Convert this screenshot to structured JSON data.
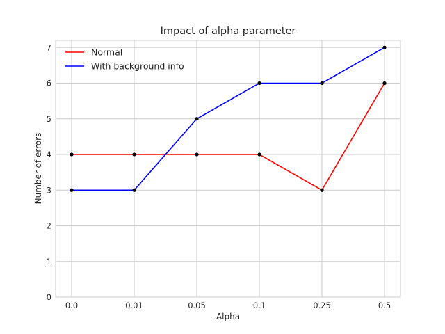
{
  "chart_data": {
    "type": "line",
    "title": "Impact of alpha parameter",
    "xlabel": "Alpha",
    "ylabel": "Number of errors",
    "categories": [
      "0.0",
      "0.01",
      "0.05",
      "0.1",
      "0.25",
      "0.5"
    ],
    "ylim": [
      0,
      7.2
    ],
    "yticks": [
      0,
      1,
      2,
      3,
      4,
      5,
      6,
      7
    ],
    "grid": true,
    "legend_position": "top-left",
    "marker_color": "#000000",
    "series": [
      {
        "name": "Normal",
        "color": "#ff0000",
        "values": [
          4,
          4,
          4,
          4,
          3,
          6
        ]
      },
      {
        "name": "With background info",
        "color": "#0000ff",
        "values": [
          3,
          3,
          5,
          6,
          6,
          7
        ]
      }
    ]
  }
}
